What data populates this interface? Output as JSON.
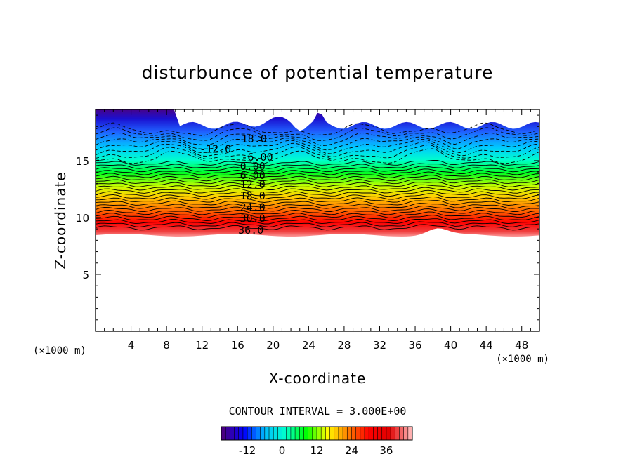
{
  "chart_data": {
    "type": "heatmap",
    "title": "disturbunce of potential temperature",
    "xlabel": "X-coordinate",
    "ylabel": "Z-coordinate",
    "x_unit": "(×1000 m)",
    "z_unit": "(×1000 m)",
    "xlim": [
      0,
      50
    ],
    "ylim": [
      0,
      19.5
    ],
    "x_ticks": [
      "4",
      "8",
      "12",
      "16",
      "20",
      "24",
      "28",
      "32",
      "36",
      "40",
      "44",
      "48"
    ],
    "y_ticks": [
      "5",
      "10",
      "15"
    ],
    "grid": false,
    "contour_interval_text": "CONTOUR INTERVAL = 3.000E+00",
    "contour_labels": [
      {
        "text": "-18.0",
        "x": 17.5,
        "z": 16.9
      },
      {
        "text": "-12.0",
        "x": 13.5,
        "z": 16.0
      },
      {
        "text": "-6.00",
        "x": 18.2,
        "z": 15.3
      },
      {
        "text": "0.00",
        "x": 17.7,
        "z": 14.5
      },
      {
        "text": "6.00",
        "x": 17.7,
        "z": 13.7
      },
      {
        "text": "12.0",
        "x": 17.7,
        "z": 12.9
      },
      {
        "text": "18.0",
        "x": 17.7,
        "z": 11.9
      },
      {
        "text": "24.0",
        "x": 17.7,
        "z": 10.9
      },
      {
        "text": "30.0",
        "x": 17.7,
        "z": 9.9
      },
      {
        "text": "36.0",
        "x": 17.5,
        "z": 8.9
      }
    ],
    "colorbar": {
      "ticks": [
        "-12",
        "0",
        "12",
        "24",
        "36"
      ],
      "range": [
        -21,
        45
      ],
      "colors": [
        "#4b0082",
        "#0000ff",
        "#00bfff",
        "#00ffcc",
        "#00ff00",
        "#ffff00",
        "#ff8000",
        "#ff0000",
        "#e00000",
        "#ffb0b0"
      ]
    }
  }
}
